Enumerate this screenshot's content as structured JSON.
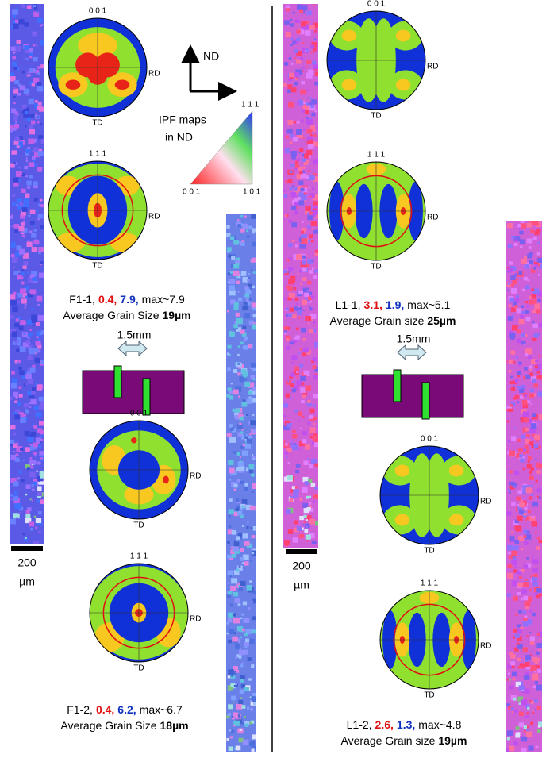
{
  "legend": {
    "direction": "ND",
    "ipf_title": "IPF maps",
    "ipf_subtitle": "in ND",
    "corners": [
      "0 0 1",
      "1 0 1",
      "1 1 1"
    ]
  },
  "panels": [
    {
      "scale_bar": {
        "value": "200",
        "unit": "µm"
      },
      "schematic": {
        "label": "1.5mm"
      },
      "samples": [
        {
          "pole_figures": [
            {
              "label": "0 0 1",
              "rd": "RD",
              "td": "TD"
            },
            {
              "label": "1 1 1",
              "rd": "RD",
              "td": "TD"
            }
          ],
          "caption": {
            "name": "F1-1,",
            "red": "0.4,",
            "blue": "7.9,",
            "max": "max~7.9"
          },
          "grain": {
            "label": "Average Grain Size",
            "value": "19µm"
          }
        },
        {
          "pole_figures": [
            {
              "label": "0 0 1",
              "rd": "RD",
              "td": "TD"
            },
            {
              "label": "1 1 1",
              "rd": "RD",
              "td": "TD"
            }
          ],
          "caption": {
            "name": "F1-2,",
            "red": "0.4,",
            "blue": "6.2,",
            "max": "max~6.7"
          },
          "grain": {
            "label": "Average Grain Size",
            "value": "18µm"
          }
        }
      ]
    },
    {
      "scale_bar": {
        "value": "200",
        "unit": "µm"
      },
      "schematic": {
        "label": "1.5mm"
      },
      "samples": [
        {
          "pole_figures": [
            {
              "label": "0 0 1",
              "rd": "RD",
              "td": "TD"
            },
            {
              "label": "1 1 1",
              "rd": "RD",
              "td": "TD"
            }
          ],
          "caption": {
            "name": "L1-1,",
            "red": "3.1,",
            "blue": "1.9,",
            "max": "max~5.1"
          },
          "grain": {
            "label": "Average Grain size",
            "value": "25µm"
          }
        },
        {
          "pole_figures": [
            {
              "label": "0 0 1",
              "rd": "RD",
              "td": "TD"
            },
            {
              "label": "1 1 1",
              "rd": "RD",
              "td": "TD"
            }
          ],
          "caption": {
            "name": "L1-2,",
            "red": "2.6,",
            "blue": "1.3,",
            "max": "max~4.8"
          },
          "grain": {
            "label": "Average Grain size",
            "value": "19µm"
          }
        }
      ]
    }
  ]
}
